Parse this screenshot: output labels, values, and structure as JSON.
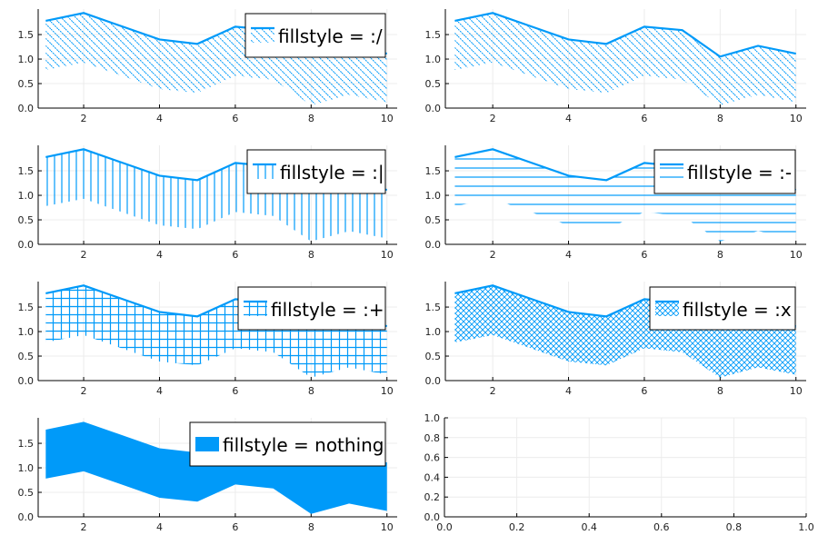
{
  "chart_data": [
    {
      "type": "area",
      "legend": "fillstyle = :/",
      "fillstyle": "/",
      "x": [
        1,
        2,
        3,
        4,
        5,
        6,
        7,
        8,
        9,
        10
      ],
      "upper": [
        1.78,
        1.94,
        1.67,
        1.4,
        1.31,
        1.66,
        1.59,
        1.05,
        1.27,
        1.11
      ],
      "lower": [
        0.78,
        0.93,
        0.66,
        0.39,
        0.31,
        0.66,
        0.58,
        0.06,
        0.27,
        0.12
      ],
      "xlim": [
        0.8,
        10.27
      ],
      "ylim": [
        0,
        2.02
      ],
      "xticks": [
        "2",
        "4",
        "6",
        "8",
        "10"
      ],
      "yticks": [
        "0.0",
        "0.5",
        "1.0",
        "1.5"
      ],
      "legend_position": "top-right"
    },
    {
      "type": "area",
      "legend": null,
      "fillstyle": "/",
      "x": [
        1,
        2,
        3,
        4,
        5,
        6,
        7,
        8,
        9,
        10
      ],
      "upper": [
        1.78,
        1.94,
        1.67,
        1.4,
        1.31,
        1.66,
        1.59,
        1.05,
        1.27,
        1.11
      ],
      "lower": [
        0.78,
        0.93,
        0.66,
        0.39,
        0.31,
        0.66,
        0.58,
        0.06,
        0.27,
        0.12
      ],
      "xlim": [
        0.75,
        10.27
      ],
      "ylim": [
        0,
        2.02
      ],
      "xticks": [
        "2",
        "4",
        "6",
        "8",
        "10"
      ],
      "yticks": [
        "0.0",
        "0.5",
        "1.0",
        "1.5"
      ]
    },
    {
      "type": "area",
      "legend": "fillstyle = :|",
      "fillstyle": "|",
      "x": [
        1,
        2,
        3,
        4,
        5,
        6,
        7,
        8,
        9,
        10
      ],
      "upper": [
        1.78,
        1.94,
        1.67,
        1.4,
        1.31,
        1.66,
        1.59,
        1.05,
        1.27,
        1.11
      ],
      "lower": [
        0.78,
        0.93,
        0.66,
        0.39,
        0.31,
        0.66,
        0.58,
        0.06,
        0.27,
        0.12
      ],
      "xlim": [
        0.8,
        10.27
      ],
      "ylim": [
        0,
        2.02
      ],
      "xticks": [
        "2",
        "4",
        "6",
        "8",
        "10"
      ],
      "yticks": [
        "0.0",
        "0.5",
        "1.0",
        "1.5"
      ],
      "legend_position": "top-right"
    },
    {
      "type": "area",
      "legend": "fillstyle = :-",
      "fillstyle": "-",
      "x": [
        1,
        2,
        3,
        4,
        5,
        6,
        7,
        8,
        9,
        10
      ],
      "upper": [
        1.78,
        1.94,
        1.67,
        1.4,
        1.31,
        1.66,
        1.59,
        1.05,
        1.27,
        1.11
      ],
      "lower": [
        0.78,
        0.93,
        0.66,
        0.39,
        0.31,
        0.66,
        0.58,
        0.06,
        0.27,
        0.12
      ],
      "xlim": [
        0.75,
        10.27
      ],
      "ylim": [
        0,
        2.02
      ],
      "xticks": [
        "2",
        "4",
        "6",
        "8",
        "10"
      ],
      "yticks": [
        "0.0",
        "0.5",
        "1.0",
        "1.5"
      ],
      "legend_position": "top-right"
    },
    {
      "type": "area",
      "legend": "fillstyle = :+",
      "fillstyle": "+",
      "x": [
        1,
        2,
        3,
        4,
        5,
        6,
        7,
        8,
        9,
        10
      ],
      "upper": [
        1.78,
        1.94,
        1.67,
        1.4,
        1.31,
        1.66,
        1.59,
        1.05,
        1.27,
        1.11
      ],
      "lower": [
        0.78,
        0.93,
        0.66,
        0.39,
        0.31,
        0.66,
        0.58,
        0.06,
        0.27,
        0.12
      ],
      "xlim": [
        0.8,
        10.27
      ],
      "ylim": [
        0,
        2.02
      ],
      "xticks": [
        "2",
        "4",
        "6",
        "8",
        "10"
      ],
      "yticks": [
        "0.0",
        "0.5",
        "1.0",
        "1.5"
      ],
      "legend_position": "top-right"
    },
    {
      "type": "area",
      "legend": "fillstyle = :x",
      "fillstyle": "x",
      "x": [
        1,
        2,
        3,
        4,
        5,
        6,
        7,
        8,
        9,
        10
      ],
      "upper": [
        1.78,
        1.94,
        1.67,
        1.4,
        1.31,
        1.66,
        1.59,
        1.05,
        1.27,
        1.11
      ],
      "lower": [
        0.78,
        0.93,
        0.66,
        0.39,
        0.31,
        0.66,
        0.58,
        0.06,
        0.27,
        0.12
      ],
      "xlim": [
        0.75,
        10.27
      ],
      "ylim": [
        0,
        2.02
      ],
      "xticks": [
        "2",
        "4",
        "6",
        "8",
        "10"
      ],
      "yticks": [
        "0.0",
        "0.5",
        "1.0",
        "1.5"
      ],
      "legend_position": "top-right"
    },
    {
      "type": "area",
      "legend": "fillstyle = nothing",
      "fillstyle": "solid",
      "x": [
        1,
        2,
        3,
        4,
        5,
        6,
        7,
        8,
        9,
        10
      ],
      "upper": [
        1.78,
        1.94,
        1.67,
        1.4,
        1.31,
        1.66,
        1.59,
        1.05,
        1.27,
        1.11
      ],
      "lower": [
        0.78,
        0.93,
        0.66,
        0.39,
        0.31,
        0.66,
        0.58,
        0.06,
        0.27,
        0.12
      ],
      "xlim": [
        0.8,
        10.27
      ],
      "ylim": [
        0,
        2.02
      ],
      "xticks": [
        "2",
        "4",
        "6",
        "8",
        "10"
      ],
      "yticks": [
        "0.0",
        "0.5",
        "1.0",
        "1.5"
      ],
      "legend_position": "top-right"
    },
    {
      "type": "empty",
      "xlim": [
        0,
        1
      ],
      "ylim": [
        0,
        1
      ],
      "xticks": [
        "0.0",
        "0.2",
        "0.4",
        "0.6",
        "0.8",
        "1.0"
      ],
      "yticks": [
        "0.0",
        "0.2",
        "0.4",
        "0.6",
        "0.8",
        "1.0"
      ]
    }
  ],
  "colors": {
    "series": "#009af9",
    "axis": "#000000",
    "grid": "#ececec"
  }
}
